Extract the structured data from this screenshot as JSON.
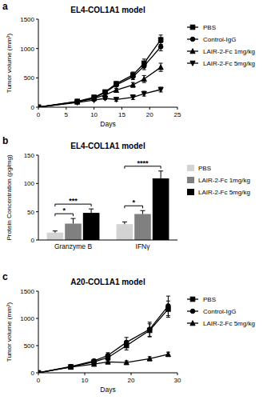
{
  "chart_data": [
    {
      "type": "line",
      "panel_label": "a",
      "title": "EL4-COL1A1 model",
      "x_label": "Days",
      "y_label": "Tumor volume (mm³)",
      "x": [
        0,
        7,
        10,
        12,
        14,
        17,
        19,
        22
      ],
      "xlim": [
        0,
        25
      ],
      "xticks": [
        0,
        5,
        10,
        15,
        20,
        25
      ],
      "ylim": [
        0,
        1500
      ],
      "yticks": [
        0,
        500,
        1000,
        1500
      ],
      "grid": false,
      "legend": "right",
      "series": [
        {
          "name": "PBS",
          "color": "#000000",
          "marker": "square",
          "values": [
            0,
            100,
            170,
            260,
            400,
            550,
            750,
            1150
          ],
          "errors": [
            0,
            10,
            15,
            25,
            35,
            50,
            70,
            80
          ]
        },
        {
          "name": "Control-IgG",
          "color": "#000000",
          "marker": "circle",
          "values": [
            0,
            95,
            160,
            250,
            380,
            520,
            700,
            1030
          ],
          "errors": [
            0,
            10,
            15,
            25,
            35,
            50,
            60,
            70
          ]
        },
        {
          "name": "LAIR-2-Fc 1mg/kg",
          "color": "#000000",
          "marker": "triangle",
          "values": [
            0,
            90,
            150,
            210,
            290,
            380,
            480,
            680
          ],
          "errors": [
            0,
            10,
            15,
            20,
            30,
            40,
            60,
            70
          ]
        },
        {
          "name": "LAIR-2-Fc 5mg/kg",
          "color": "#000000",
          "marker": "triangle-down",
          "values": [
            0,
            80,
            120,
            150,
            130,
            170,
            230,
            300
          ],
          "errors": [
            0,
            10,
            15,
            20,
            30,
            40,
            40,
            40
          ]
        }
      ]
    },
    {
      "type": "bar",
      "panel_label": "b",
      "title": "EL4-COL1A1 model",
      "y_label": "Protein Concentration (pg/mg)",
      "categories": [
        "Granzyme B",
        "IFNγ"
      ],
      "ylim": [
        0,
        150
      ],
      "yticks": [
        0,
        50,
        100,
        150
      ],
      "grid": false,
      "legend": "right",
      "series": [
        {
          "name": "PBS",
          "color": "#d3d3d3",
          "values": [
            13,
            28
          ],
          "errors": [
            3,
            4
          ]
        },
        {
          "name": "LAIR-2-Fc 1mg/kg",
          "color": "#808080",
          "values": [
            29,
            46
          ],
          "errors": [
            9,
            6
          ]
        },
        {
          "name": "LAIR-2-Fc 5mg/kg",
          "color": "#000000",
          "values": [
            48,
            109
          ],
          "errors": [
            7,
            13
          ]
        }
      ],
      "annotations": [
        {
          "text": "*",
          "category": "Granzyme B",
          "from": "PBS",
          "to": "LAIR-2-Fc 1mg/kg"
        },
        {
          "text": "***",
          "category": "Granzyme B",
          "from": "PBS",
          "to": "LAIR-2-Fc 5mg/kg"
        },
        {
          "text": "*",
          "category": "IFNγ",
          "from": "PBS",
          "to": "LAIR-2-Fc 1mg/kg"
        },
        {
          "text": "****",
          "category": "IFNγ",
          "from": "PBS",
          "to": "LAIR-2-Fc 5mg/kg"
        }
      ]
    },
    {
      "type": "line",
      "panel_label": "c",
      "title": "A20-COL1A1 model",
      "x_label": "Days",
      "y_label": "Tumor volume (mm³)",
      "x": [
        0,
        7,
        12,
        15,
        19,
        24,
        28
      ],
      "xlim": [
        0,
        30
      ],
      "xticks": [
        0,
        10,
        20,
        30
      ],
      "ylim": [
        0,
        1500
      ],
      "yticks": [
        0,
        500,
        1000,
        1500
      ],
      "grid": false,
      "legend": "right",
      "series": [
        {
          "name": "PBS",
          "color": "#000000",
          "marker": "square",
          "values": [
            0,
            110,
            200,
            280,
            500,
            780,
            1170
          ],
          "errors": [
            0,
            10,
            20,
            40,
            80,
            120,
            150
          ]
        },
        {
          "name": "Control-IgG",
          "color": "#000000",
          "marker": "circle",
          "values": [
            0,
            115,
            220,
            320,
            560,
            800,
            1230
          ],
          "errors": [
            0,
            10,
            25,
            50,
            90,
            130,
            180
          ]
        },
        {
          "name": "LAIR-2-Fc 5mg/kg",
          "color": "#000000",
          "marker": "triangle",
          "values": [
            0,
            105,
            160,
            200,
            190,
            260,
            340
          ],
          "errors": [
            0,
            10,
            20,
            25,
            30,
            35,
            40
          ]
        }
      ]
    }
  ]
}
